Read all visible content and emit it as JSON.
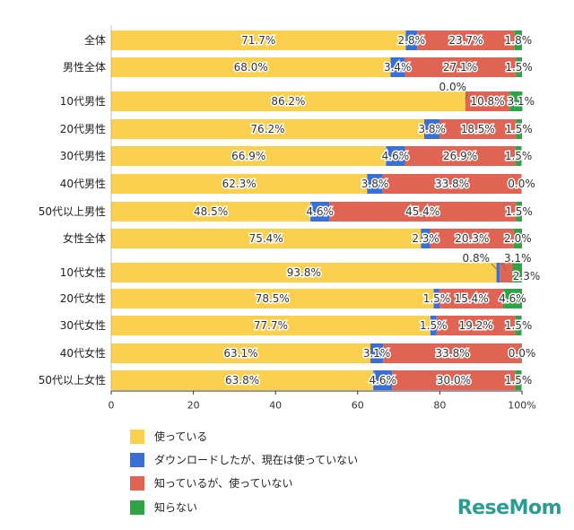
{
  "chart_data": {
    "type": "bar",
    "orientation": "horizontal",
    "stacked": true,
    "categories": [
      "全体",
      "男性全体",
      "10代男性",
      "20代男性",
      "30代男性",
      "40代男性",
      "50代以上男性",
      "女性全体",
      "10代女性",
      "20代女性",
      "30代女性",
      "40代女性",
      "50代以上女性"
    ],
    "series": [
      {
        "name": "使っている",
        "color": "#fbd04f",
        "values": [
          71.7,
          68.0,
          86.2,
          76.2,
          66.9,
          62.3,
          48.5,
          75.4,
          93.8,
          78.5,
          77.7,
          63.1,
          63.8
        ]
      },
      {
        "name": "ダウンロードしたが、現在は使っていない",
        "color": "#3a6fd3",
        "values": [
          2.8,
          3.4,
          0.0,
          3.8,
          4.6,
          3.8,
          4.6,
          2.3,
          0.8,
          1.5,
          1.5,
          3.1,
          4.6
        ]
      },
      {
        "name": "知っているが、使っていない",
        "color": "#e06453",
        "values": [
          23.7,
          27.1,
          10.8,
          18.5,
          26.9,
          33.8,
          45.4,
          20.3,
          3.1,
          15.4,
          19.2,
          33.8,
          30.0
        ]
      },
      {
        "name": "知らない",
        "color": "#2ea446",
        "values": [
          1.8,
          1.5,
          3.1,
          1.5,
          1.5,
          0.0,
          1.5,
          2.0,
          2.3,
          4.6,
          1.5,
          0.0,
          1.5
        ]
      }
    ],
    "xlim": [
      0,
      100
    ],
    "xticks": [
      "0",
      "20",
      "40",
      "60",
      "80",
      "100%"
    ],
    "legend_position": "bottom",
    "grid": false
  },
  "logo_text": "ReseMom"
}
